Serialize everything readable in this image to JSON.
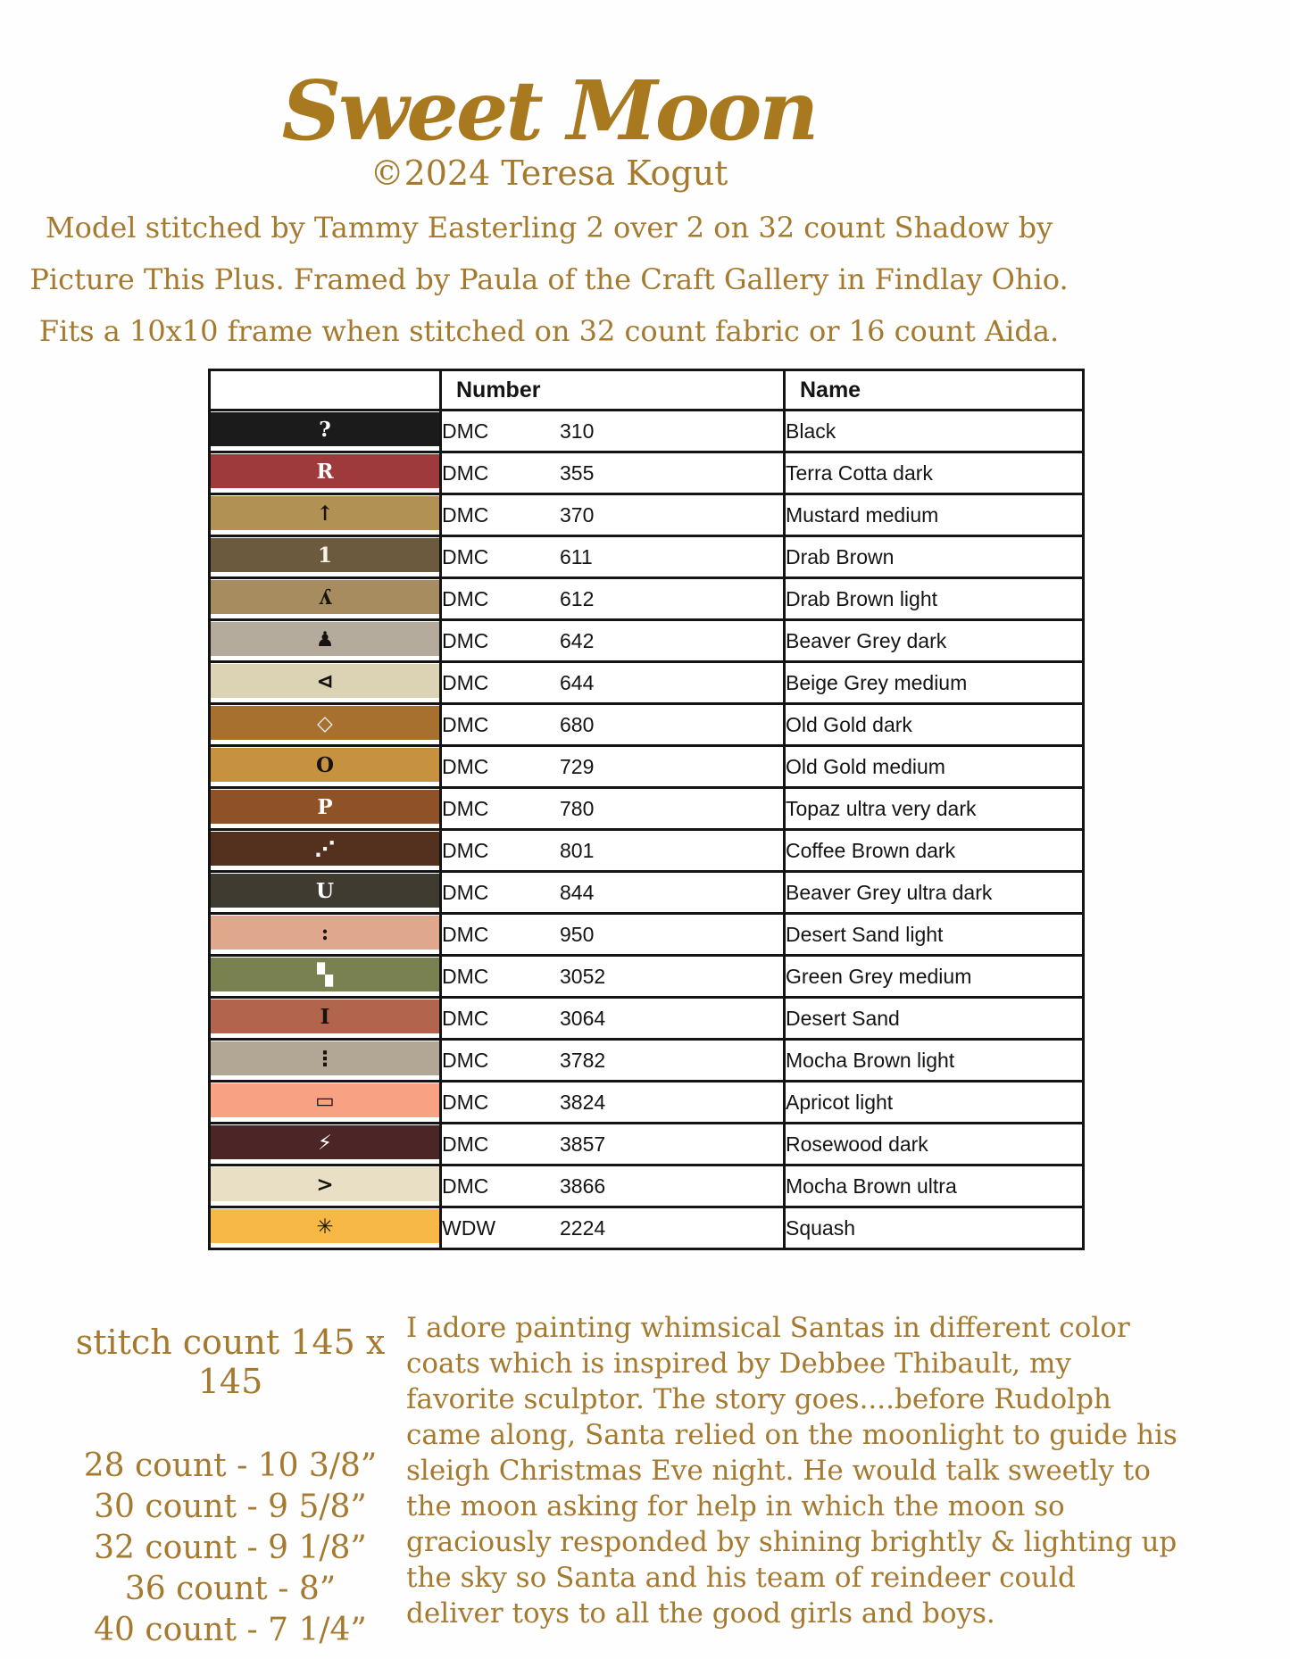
{
  "header": {
    "title": "Sweet Moon",
    "copyright": "©2024 Teresa Kogut",
    "description_lines": [
      "Model stitched by Tammy Easterling 2 over 2 on 32 count Shadow by",
      "Picture This Plus. Framed by Paula of the Craft Gallery in Findlay Ohio.",
      "Fits a 10x10 frame when stitched on 32 count fabric or 16 count Aida."
    ],
    "text_color": "#a5792e"
  },
  "table": {
    "number_header": "Number",
    "name_header": "Name",
    "rows": [
      {
        "symbol": "?",
        "symbol_color": "#ffffff",
        "swatch_color": "#1b1b1b",
        "brand": "DMC",
        "code": "310",
        "name": "Black"
      },
      {
        "symbol": "R",
        "symbol_color": "#ffffff",
        "swatch_color": "#9e3a3c",
        "brand": "DMC",
        "code": "355",
        "name": "Terra Cotta dark"
      },
      {
        "symbol": "↑",
        "symbol_color": "#17130e",
        "swatch_color": "#b29254",
        "brand": "DMC",
        "code": "370",
        "name": "Mustard medium"
      },
      {
        "symbol": "1",
        "symbol_color": "#f7f3ea",
        "swatch_color": "#6b5a3e",
        "brand": "DMC",
        "code": "611",
        "name": "Drab Brown"
      },
      {
        "symbol": "ʎ",
        "symbol_color": "#17130e",
        "swatch_color": "#a68c5e",
        "brand": "DMC",
        "code": "612",
        "name": "Drab Brown light"
      },
      {
        "symbol": "♟",
        "symbol_color": "#17130e",
        "swatch_color": "#b4ab9d",
        "brand": "DMC",
        "code": "642",
        "name": "Beaver Grey dark"
      },
      {
        "symbol": "⊲",
        "symbol_color": "#17130e",
        "swatch_color": "#dcd2b4",
        "brand": "DMC",
        "code": "644",
        "name": "Beige Grey medium"
      },
      {
        "symbol": "◇",
        "symbol_color": "#ffffff",
        "swatch_color": "#a8702f",
        "brand": "DMC",
        "code": "680",
        "name": "Old Gold dark"
      },
      {
        "symbol": "O",
        "symbol_color": "#17130e",
        "swatch_color": "#c7923f",
        "brand": "DMC",
        "code": "729",
        "name": "Old Gold medium"
      },
      {
        "symbol": "P",
        "symbol_color": "#ffffff",
        "swatch_color": "#8f5126",
        "brand": "DMC",
        "code": "780",
        "name": "Topaz ultra very dark"
      },
      {
        "symbol": "⋰",
        "symbol_color": "#ffffff",
        "swatch_color": "#54301e",
        "brand": "DMC",
        "code": "801",
        "name": "Coffee Brown dark"
      },
      {
        "symbol": "U",
        "symbol_color": "#ffffff",
        "swatch_color": "#3f3b31",
        "brand": "DMC",
        "code": "844",
        "name": "Beaver Grey ultra dark"
      },
      {
        "symbol": ":",
        "symbol_color": "#17130e",
        "swatch_color": "#dfa88d",
        "brand": "DMC",
        "code": "950",
        "name": "Desert Sand light"
      },
      {
        "symbol": "▚",
        "symbol_color": "#ffffff",
        "swatch_color": "#78814f",
        "brand": "DMC",
        "code": "3052",
        "name": "Green Grey medium"
      },
      {
        "symbol": "I",
        "symbol_color": "#17130e",
        "swatch_color": "#b2654d",
        "brand": "DMC",
        "code": "3064",
        "name": "Desert Sand"
      },
      {
        "symbol": "⋮",
        "symbol_color": "#17130e",
        "swatch_color": "#b2a794",
        "brand": "DMC",
        "code": "3782",
        "name": "Mocha Brown light"
      },
      {
        "symbol": "▭",
        "symbol_color": "#17130e",
        "swatch_color": "#f9a183",
        "brand": "DMC",
        "code": "3824",
        "name": "Apricot light"
      },
      {
        "symbol": "⚡",
        "symbol_color": "#ffffff",
        "swatch_color": "#4c2626",
        "brand": "DMC",
        "code": "3857",
        "name": "Rosewood dark"
      },
      {
        "symbol": ">",
        "symbol_color": "#17130e",
        "swatch_color": "#e9dfc5",
        "brand": "DMC",
        "code": "3866",
        "name": "Mocha Brown ultra"
      },
      {
        "symbol": "✳",
        "symbol_color": "#17130e",
        "swatch_color": "#f8b845",
        "brand": "WDW",
        "code": "2224",
        "name": "Squash"
      }
    ]
  },
  "footer": {
    "stitch_count": "stitch count 145 x 145",
    "fabric_counts": [
      "28 count - 10 3/8”",
      "30 count - 9 5/8”",
      "32 count - 9 1/8”",
      "36 count - 8”",
      "40 count - 7 1/4”"
    ],
    "story": "I adore painting whimsical Santas in different color coats which is inspired by Debbee Thibault, my favorite sculptor. The story goes....before Rudolph came along, Santa relied on the moonlight to guide his sleigh Christmas Eve night. He would talk sweetly to the moon asking for help in which the moon so graciously responded by shining brightly & lighting up the sky so Santa and his team of reindeer could deliver toys to all the good girls and boys."
  }
}
